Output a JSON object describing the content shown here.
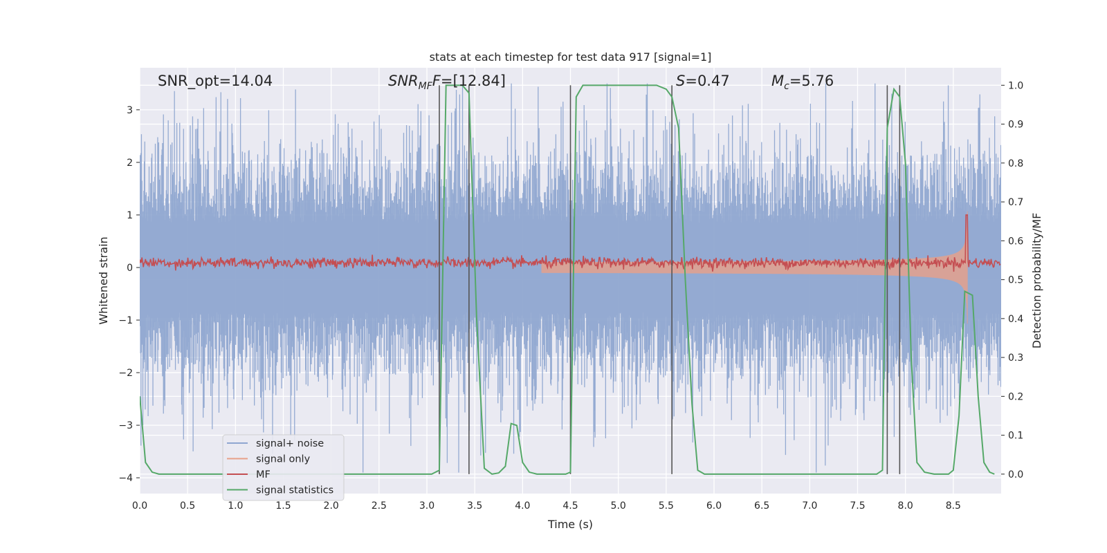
{
  "chart_data": {
    "type": "line",
    "title": "stats at each timestep for test data 917 [signal=1]",
    "xlabel": "Time (s)",
    "ylabel_left": "Whitened strain",
    "ylabel_right": "Detection probability/MF",
    "xlim": [
      0,
      9
    ],
    "ylim_left": [
      -4.3,
      3.8
    ],
    "ylim_right": [
      -0.05,
      1.045
    ],
    "x_ticks": [
      "0.0",
      "0.5",
      "1.0",
      "1.5",
      "2.0",
      "2.5",
      "3.0",
      "3.5",
      "4.0",
      "4.5",
      "5.0",
      "5.5",
      "6.0",
      "6.5",
      "7.0",
      "7.5",
      "8.0",
      "8.5"
    ],
    "y_ticks_left": [
      "3",
      "2",
      "1",
      "0",
      "−1",
      "−2",
      "−3",
      "−4"
    ],
    "y_ticks_right": [
      "1.0",
      "0.9",
      "0.8",
      "0.7",
      "0.6",
      "0.5",
      "0.4",
      "0.3",
      "0.2",
      "0.1",
      "0.0"
    ],
    "grid": true,
    "legend": {
      "placement": "lower-left",
      "entries": [
        "signal+ noise",
        "signal only",
        "MF",
        "signal statistics"
      ]
    },
    "annotations": {
      "snr_opt": "SNR_opt=14.04",
      "snr_mf_base": "SNR",
      "snr_mf_sub": "MF",
      "snr_mf_value": "=[12.84]",
      "s_base": "S",
      "s_value": "=0.47",
      "mc_base": "M",
      "mc_sub": "c",
      "mc_value": "=5.76"
    },
    "vertical_lines_x": [
      3.13,
      3.44,
      4.5,
      5.56,
      7.81,
      7.94
    ],
    "colors": {
      "signal_noise": "#8fa6d0",
      "signal_only": "#e8a088",
      "mf": "#c44e52",
      "signal_statistics": "#55a868",
      "vlines": "#555555"
    },
    "series": [
      {
        "name": "signal statistics",
        "axis": "right",
        "points": [
          [
            0.0,
            0.2
          ],
          [
            0.06,
            0.03
          ],
          [
            0.13,
            0.005
          ],
          [
            0.2,
            0.0
          ],
          [
            3.05,
            0.0
          ],
          [
            3.13,
            0.01
          ],
          [
            3.2,
            1.0
          ],
          [
            3.3,
            1.0
          ],
          [
            3.37,
            1.0
          ],
          [
            3.44,
            0.98
          ],
          [
            3.52,
            0.4
          ],
          [
            3.6,
            0.015
          ],
          [
            3.68,
            0.0
          ],
          [
            3.75,
            0.003
          ],
          [
            3.82,
            0.02
          ],
          [
            3.88,
            0.13
          ],
          [
            3.94,
            0.125
          ],
          [
            4.0,
            0.03
          ],
          [
            4.07,
            0.005
          ],
          [
            4.15,
            0.0
          ],
          [
            4.45,
            0.0
          ],
          [
            4.5,
            0.005
          ],
          [
            4.56,
            0.97
          ],
          [
            4.63,
            1.0
          ],
          [
            5.4,
            1.0
          ],
          [
            5.5,
            0.99
          ],
          [
            5.56,
            0.97
          ],
          [
            5.63,
            0.89
          ],
          [
            5.7,
            0.5
          ],
          [
            5.77,
            0.18
          ],
          [
            5.83,
            0.01
          ],
          [
            5.9,
            0.0
          ],
          [
            7.7,
            0.0
          ],
          [
            7.76,
            0.01
          ],
          [
            7.81,
            0.89
          ],
          [
            7.88,
            0.99
          ],
          [
            7.94,
            0.97
          ],
          [
            8.0,
            0.8
          ],
          [
            8.06,
            0.3
          ],
          [
            8.12,
            0.03
          ],
          [
            8.2,
            0.005
          ],
          [
            8.3,
            0.0
          ],
          [
            8.45,
            0.0
          ],
          [
            8.5,
            0.01
          ],
          [
            8.56,
            0.15
          ],
          [
            8.62,
            0.47
          ],
          [
            8.7,
            0.46
          ],
          [
            8.76,
            0.2
          ],
          [
            8.82,
            0.03
          ],
          [
            8.88,
            0.005
          ],
          [
            8.93,
            0.0
          ]
        ]
      }
    ]
  }
}
